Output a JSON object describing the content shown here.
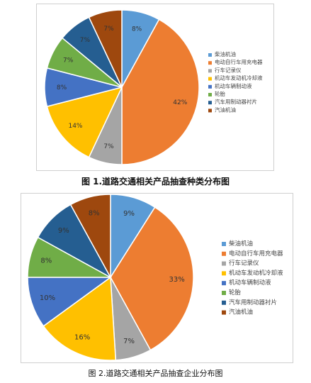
{
  "chart_data": [
    {
      "type": "pie",
      "title": "",
      "legend_position": "right",
      "categories": [
        "柴油机油",
        "电动自行车用充电器",
        "行车记录仪",
        "机动车发动机冷却液",
        "机动车辆制动液",
        "轮胎",
        "汽车用制动器衬片",
        "汽油机油"
      ],
      "values": [
        8,
        42,
        7,
        14,
        8,
        7,
        7,
        7
      ],
      "labels": [
        "8%",
        "42%",
        "7%",
        "14%",
        "8%",
        "7%",
        "7%",
        "7%"
      ],
      "colors": [
        "#5b9bd5",
        "#ed7d31",
        "#a5a5a5",
        "#ffc000",
        "#4472c4",
        "#70ad47",
        "#255e91",
        "#9e480e"
      ]
    },
    {
      "type": "pie",
      "title": "",
      "legend_position": "right",
      "categories": [
        "柴油机油",
        "电动自行车用充电器",
        "行车记录仪",
        "机动车发动机冷却液",
        "机动车辆制动液",
        "轮胎",
        "汽车用制动器衬片",
        "汽油机油"
      ],
      "values": [
        9,
        33,
        7,
        16,
        10,
        8,
        9,
        8
      ],
      "labels": [
        "9%",
        "33%",
        "7%",
        "16%",
        "10%",
        "8%",
        "9%",
        "8%"
      ],
      "colors": [
        "#5b9bd5",
        "#ed7d31",
        "#a5a5a5",
        "#ffc000",
        "#4472c4",
        "#70ad47",
        "#255e91",
        "#9e480e"
      ]
    }
  ],
  "captions": {
    "fig1": "图 1.道路交通相关产品抽查种类分布图",
    "fig2": "图 2.道路交通相关产品抽查企业分布图"
  }
}
